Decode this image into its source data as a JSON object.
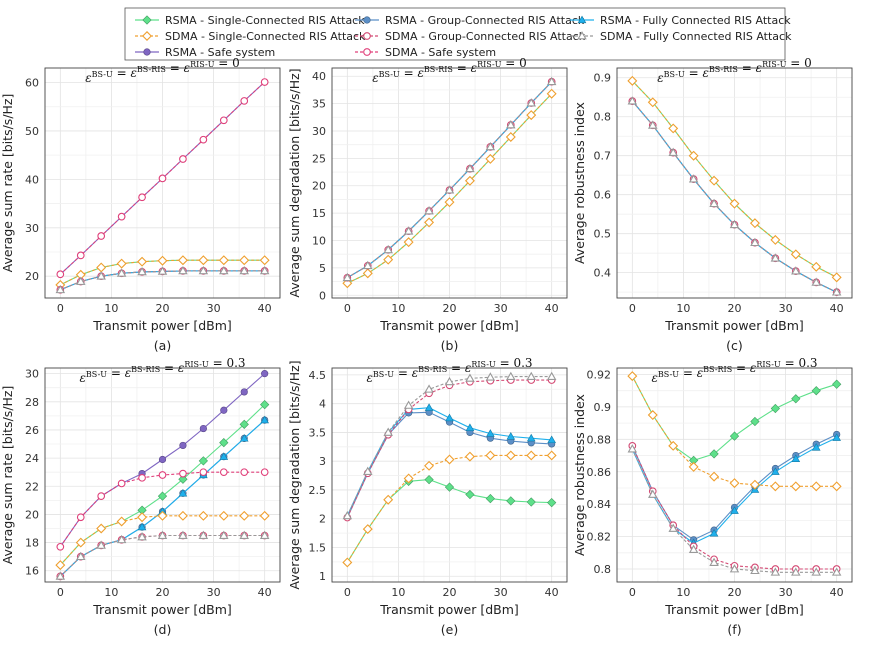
{
  "legend": {
    "entries": [
      {
        "label": "RSMA - Single-Connected RIS Attack",
        "color": "#5ee08a",
        "marker": "diamond",
        "dash": false
      },
      {
        "label": "RSMA - Group-Connected RIS Attack",
        "color": "#5b8fc7",
        "marker": "circle",
        "dash": false
      },
      {
        "label": "RSMA - Fully Connected RIS Attack",
        "color": "#1fb0ec",
        "marker": "triangle",
        "dash": false
      },
      {
        "label": "SDMA - Single-Connected RIS Attack",
        "color": "#f0a030",
        "marker": "diamond-open",
        "dash": true
      },
      {
        "label": "SDMA - Group-Connected RIS Attack",
        "color": "#d44a74",
        "marker": "circle-open",
        "dash": true
      },
      {
        "label": "SDMA - Fully Connected RIS Attack",
        "color": "#999999",
        "marker": "triangle-open",
        "dash": true
      },
      {
        "label": "RSMA - Safe system",
        "color": "#7f66c2",
        "marker": "circle",
        "dash": false
      },
      {
        "label": "SDMA - Safe system",
        "color": "#e0407a",
        "marker": "circle-open",
        "dash": true
      }
    ]
  },
  "chart_data": [
    {
      "type": "line",
      "sublabel": "(a)",
      "title": "ε^BS-U = ε^BS-RIS = ε^RIS-U = 0",
      "xlabel": "Transmit power [dBm]",
      "ylabel": "Average sum rate [bits/s/Hz]",
      "xlim": [
        -3,
        43
      ],
      "ylim": [
        15.5,
        63
      ],
      "xticks": [
        0,
        10,
        20,
        30,
        40
      ],
      "yticks": [
        20,
        30,
        40,
        50,
        60
      ],
      "x": [
        0,
        4,
        8,
        12,
        16,
        20,
        24,
        28,
        32,
        36,
        40
      ],
      "series": [
        {
          "name": "RSMA - Single-Connected RIS Attack",
          "values": [
            18.2,
            20.3,
            21.8,
            22.6,
            23.0,
            23.2,
            23.3,
            23.3,
            23.3,
            23.3,
            23.3
          ]
        },
        {
          "name": "RSMA - Group-Connected RIS Attack",
          "values": [
            17.2,
            18.9,
            20.0,
            20.6,
            20.9,
            21.0,
            21.1,
            21.1,
            21.1,
            21.1,
            21.1
          ]
        },
        {
          "name": "RSMA - Fully Connected RIS Attack",
          "values": [
            17.2,
            18.9,
            20.0,
            20.6,
            20.9,
            21.0,
            21.1,
            21.1,
            21.1,
            21.1,
            21.1
          ]
        },
        {
          "name": "SDMA - Single-Connected RIS Attack",
          "values": [
            18.2,
            20.3,
            21.8,
            22.6,
            23.0,
            23.2,
            23.3,
            23.3,
            23.3,
            23.3,
            23.3
          ]
        },
        {
          "name": "SDMA - Group-Connected RIS Attack",
          "values": [
            17.2,
            18.9,
            20.0,
            20.6,
            20.9,
            21.0,
            21.1,
            21.1,
            21.1,
            21.1,
            21.1
          ]
        },
        {
          "name": "SDMA - Fully Connected RIS Attack",
          "values": [
            17.2,
            18.9,
            20.0,
            20.6,
            20.9,
            21.0,
            21.1,
            21.1,
            21.1,
            21.1,
            21.1
          ]
        },
        {
          "name": "RSMA - Safe system",
          "values": [
            20.4,
            24.3,
            28.3,
            32.3,
            36.3,
            40.2,
            44.2,
            48.2,
            52.2,
            56.2,
            60.1
          ]
        },
        {
          "name": "SDMA - Safe system",
          "values": [
            20.4,
            24.3,
            28.3,
            32.3,
            36.3,
            40.2,
            44.2,
            48.2,
            52.2,
            56.2,
            60.1
          ]
        }
      ]
    },
    {
      "type": "line",
      "sublabel": "(b)",
      "title": "ε^BS-U = ε^BS-RIS = ε^RIS-U = 0",
      "xlabel": "Transmit power [dBm]",
      "ylabel": "Average sum degradation [bits/s/Hz]",
      "xlim": [
        -3,
        43
      ],
      "ylim": [
        -0.5,
        41.5
      ],
      "xticks": [
        0,
        10,
        20,
        30,
        40
      ],
      "yticks": [
        0,
        5,
        10,
        15,
        20,
        25,
        30,
        35,
        40
      ],
      "x": [
        0,
        4,
        8,
        12,
        16,
        20,
        24,
        28,
        32,
        36,
        40
      ],
      "series": [
        {
          "name": "RSMA - Single-Connected RIS Attack",
          "values": [
            2.2,
            4.0,
            6.5,
            9.7,
            13.3,
            17.0,
            20.9,
            24.9,
            28.9,
            32.9,
            36.8
          ]
        },
        {
          "name": "RSMA - Group-Connected RIS Attack",
          "values": [
            3.2,
            5.4,
            8.3,
            11.7,
            15.4,
            19.2,
            23.1,
            27.1,
            31.1,
            35.1,
            39.0
          ]
        },
        {
          "name": "RSMA - Fully Connected RIS Attack",
          "values": [
            3.2,
            5.4,
            8.3,
            11.7,
            15.4,
            19.2,
            23.1,
            27.1,
            31.1,
            35.1,
            39.0
          ]
        },
        {
          "name": "SDMA - Single-Connected RIS Attack",
          "values": [
            2.2,
            4.0,
            6.5,
            9.7,
            13.3,
            17.0,
            20.9,
            24.9,
            28.9,
            32.9,
            36.8
          ]
        },
        {
          "name": "SDMA - Group-Connected RIS Attack",
          "values": [
            3.2,
            5.4,
            8.3,
            11.7,
            15.4,
            19.2,
            23.1,
            27.1,
            31.1,
            35.1,
            39.0
          ]
        },
        {
          "name": "SDMA - Fully Connected RIS Attack",
          "values": [
            3.2,
            5.4,
            8.3,
            11.7,
            15.4,
            19.2,
            23.1,
            27.1,
            31.1,
            35.1,
            39.0
          ]
        }
      ]
    },
    {
      "type": "line",
      "sublabel": "(c)",
      "title": "ε^BS-U = ε^BS-RIS = ε^RIS-U = 0",
      "xlabel": "Transmit power [dBm]",
      "ylabel": "Average robustness index",
      "xlim": [
        -3,
        43
      ],
      "ylim": [
        0.335,
        0.925
      ],
      "xticks": [
        0,
        10,
        20,
        30,
        40
      ],
      "yticks": [
        0.4,
        0.5,
        0.6,
        0.7,
        0.8,
        0.9
      ],
      "x": [
        0,
        4,
        8,
        12,
        16,
        20,
        24,
        28,
        32,
        36,
        40
      ],
      "series": [
        {
          "name": "RSMA - Single-Connected RIS Attack",
          "values": [
            0.892,
            0.837,
            0.77,
            0.7,
            0.636,
            0.577,
            0.527,
            0.484,
            0.447,
            0.415,
            0.388
          ]
        },
        {
          "name": "RSMA - Group-Connected RIS Attack",
          "values": [
            0.84,
            0.778,
            0.708,
            0.64,
            0.577,
            0.523,
            0.477,
            0.437,
            0.404,
            0.375,
            0.35
          ]
        },
        {
          "name": "RSMA - Fully Connected RIS Attack",
          "values": [
            0.84,
            0.778,
            0.708,
            0.64,
            0.577,
            0.523,
            0.477,
            0.437,
            0.404,
            0.375,
            0.35
          ]
        },
        {
          "name": "SDMA - Single-Connected RIS Attack",
          "values": [
            0.892,
            0.837,
            0.77,
            0.7,
            0.636,
            0.577,
            0.527,
            0.484,
            0.447,
            0.415,
            0.388
          ]
        },
        {
          "name": "SDMA - Group-Connected RIS Attack",
          "values": [
            0.84,
            0.778,
            0.708,
            0.64,
            0.577,
            0.523,
            0.477,
            0.437,
            0.404,
            0.375,
            0.35
          ]
        },
        {
          "name": "SDMA - Fully Connected RIS Attack",
          "values": [
            0.84,
            0.778,
            0.708,
            0.64,
            0.577,
            0.523,
            0.477,
            0.437,
            0.404,
            0.375,
            0.35
          ]
        }
      ]
    },
    {
      "type": "line",
      "sublabel": "(d)",
      "title": "ε^BS-U = ε^BS-RIS = ε^RIS-U = 0.3",
      "xlabel": "Transmit power [dBm]",
      "ylabel": "Average sum rate [bits/s/Hz]",
      "xlim": [
        -3,
        43
      ],
      "ylim": [
        15.2,
        30.4
      ],
      "xticks": [
        0,
        10,
        20,
        30,
        40
      ],
      "yticks": [
        16,
        18,
        20,
        22,
        24,
        26,
        28,
        30
      ],
      "x": [
        0,
        4,
        8,
        12,
        16,
        20,
        24,
        28,
        32,
        36,
        40
      ],
      "series": [
        {
          "name": "RSMA - Single-Connected RIS Attack",
          "values": [
            16.4,
            18.0,
            19.0,
            19.5,
            20.3,
            21.3,
            22.5,
            23.8,
            25.1,
            26.4,
            27.8
          ]
        },
        {
          "name": "RSMA - Group-Connected RIS Attack",
          "values": [
            15.6,
            17.0,
            17.8,
            18.2,
            19.1,
            20.2,
            21.5,
            22.8,
            24.1,
            25.4,
            26.7
          ]
        },
        {
          "name": "RSMA - Fully Connected RIS Attack",
          "values": [
            15.6,
            17.0,
            17.8,
            18.2,
            19.1,
            20.2,
            21.5,
            22.8,
            24.1,
            25.4,
            26.7
          ]
        },
        {
          "name": "SDMA - Single-Connected RIS Attack",
          "values": [
            16.4,
            18.0,
            19.0,
            19.5,
            19.8,
            19.9,
            19.9,
            19.9,
            19.9,
            19.9,
            19.9
          ]
        },
        {
          "name": "SDMA - Group-Connected RIS Attack",
          "values": [
            15.6,
            17.0,
            17.8,
            18.2,
            18.4,
            18.5,
            18.5,
            18.5,
            18.5,
            18.5,
            18.5
          ]
        },
        {
          "name": "SDMA - Fully Connected RIS Attack",
          "values": [
            15.6,
            17.0,
            17.8,
            18.2,
            18.4,
            18.5,
            18.5,
            18.5,
            18.5,
            18.5,
            18.5
          ]
        },
        {
          "name": "RSMA - Safe system",
          "values": [
            17.7,
            19.8,
            21.3,
            22.2,
            22.9,
            23.9,
            24.9,
            26.1,
            27.4,
            28.7,
            30.0
          ]
        },
        {
          "name": "SDMA - Safe system",
          "values": [
            17.7,
            19.8,
            21.3,
            22.2,
            22.6,
            22.8,
            22.9,
            23.0,
            23.0,
            23.0,
            23.0
          ]
        }
      ]
    },
    {
      "type": "line",
      "sublabel": "(e)",
      "title": "ε^BS-U = ε^BS-RIS = ε^RIS-U = 0.3",
      "xlabel": "Transmit power [dBm]",
      "ylabel": "Average sum degradation [bits/s/Hz]",
      "xlim": [
        -3,
        43
      ],
      "ylim": [
        0.9,
        4.62
      ],
      "xticks": [
        0,
        10,
        20,
        30,
        40
      ],
      "yticks": [
        1,
        1.5,
        2,
        2.5,
        3,
        3.5,
        4,
        4.5
      ],
      "x": [
        0,
        4,
        8,
        12,
        16,
        20,
        24,
        28,
        32,
        36,
        40
      ],
      "series": [
        {
          "name": "RSMA - Single-Connected RIS Attack",
          "values": [
            1.24,
            1.82,
            2.33,
            2.65,
            2.68,
            2.55,
            2.42,
            2.35,
            2.31,
            2.29,
            2.28
          ]
        },
        {
          "name": "RSMA - Group-Connected RIS Attack",
          "values": [
            2.02,
            2.79,
            3.46,
            3.84,
            3.85,
            3.68,
            3.5,
            3.4,
            3.35,
            3.32,
            3.3
          ]
        },
        {
          "name": "RSMA - Fully Connected RIS Attack",
          "values": [
            2.05,
            2.82,
            3.5,
            3.9,
            3.93,
            3.75,
            3.58,
            3.48,
            3.43,
            3.4,
            3.37
          ]
        },
        {
          "name": "SDMA - Single-Connected RIS Attack",
          "values": [
            1.24,
            1.82,
            2.33,
            2.7,
            2.92,
            3.03,
            3.08,
            3.1,
            3.1,
            3.1,
            3.1
          ]
        },
        {
          "name": "SDMA - Group-Connected RIS Attack",
          "values": [
            2.02,
            2.79,
            3.46,
            3.9,
            4.18,
            4.32,
            4.38,
            4.4,
            4.41,
            4.41,
            4.41
          ]
        },
        {
          "name": "SDMA - Fully Connected RIS Attack",
          "values": [
            2.05,
            2.82,
            3.5,
            3.97,
            4.25,
            4.38,
            4.44,
            4.46,
            4.47,
            4.47,
            4.47
          ]
        }
      ]
    },
    {
      "type": "line",
      "sublabel": "(f)",
      "title": "ε^BS-U = ε^BS-RIS = ε^RIS-U = 0.3",
      "xlabel": "Transmit power [dBm]",
      "ylabel": "Average robustness index",
      "xlim": [
        -3,
        43
      ],
      "ylim": [
        0.792,
        0.924
      ],
      "xticks": [
        0,
        10,
        20,
        30,
        40
      ],
      "yticks": [
        0.8,
        0.82,
        0.84,
        0.86,
        0.88,
        0.9,
        0.92
      ],
      "x": [
        0,
        4,
        8,
        12,
        16,
        20,
        24,
        28,
        32,
        36,
        40
      ],
      "series": [
        {
          "name": "RSMA - Single-Connected RIS Attack",
          "values": [
            0.919,
            0.895,
            0.876,
            0.867,
            0.871,
            0.882,
            0.891,
            0.899,
            0.905,
            0.91,
            0.914
          ]
        },
        {
          "name": "RSMA - Group-Connected RIS Attack",
          "values": [
            0.876,
            0.848,
            0.827,
            0.818,
            0.824,
            0.838,
            0.851,
            0.862,
            0.87,
            0.877,
            0.883
          ]
        },
        {
          "name": "RSMA - Fully Connected RIS Attack",
          "values": [
            0.874,
            0.846,
            0.825,
            0.816,
            0.822,
            0.836,
            0.849,
            0.86,
            0.868,
            0.875,
            0.881
          ]
        },
        {
          "name": "SDMA - Single-Connected RIS Attack",
          "values": [
            0.919,
            0.895,
            0.876,
            0.863,
            0.857,
            0.853,
            0.852,
            0.851,
            0.851,
            0.851,
            0.851
          ]
        },
        {
          "name": "SDMA - Group-Connected RIS Attack",
          "values": [
            0.876,
            0.848,
            0.827,
            0.814,
            0.806,
            0.802,
            0.801,
            0.8,
            0.8,
            0.8,
            0.8
          ]
        },
        {
          "name": "SDMA - Fully Connected RIS Attack",
          "values": [
            0.874,
            0.846,
            0.825,
            0.812,
            0.804,
            0.8,
            0.799,
            0.798,
            0.798,
            0.798,
            0.798
          ]
        }
      ]
    }
  ]
}
